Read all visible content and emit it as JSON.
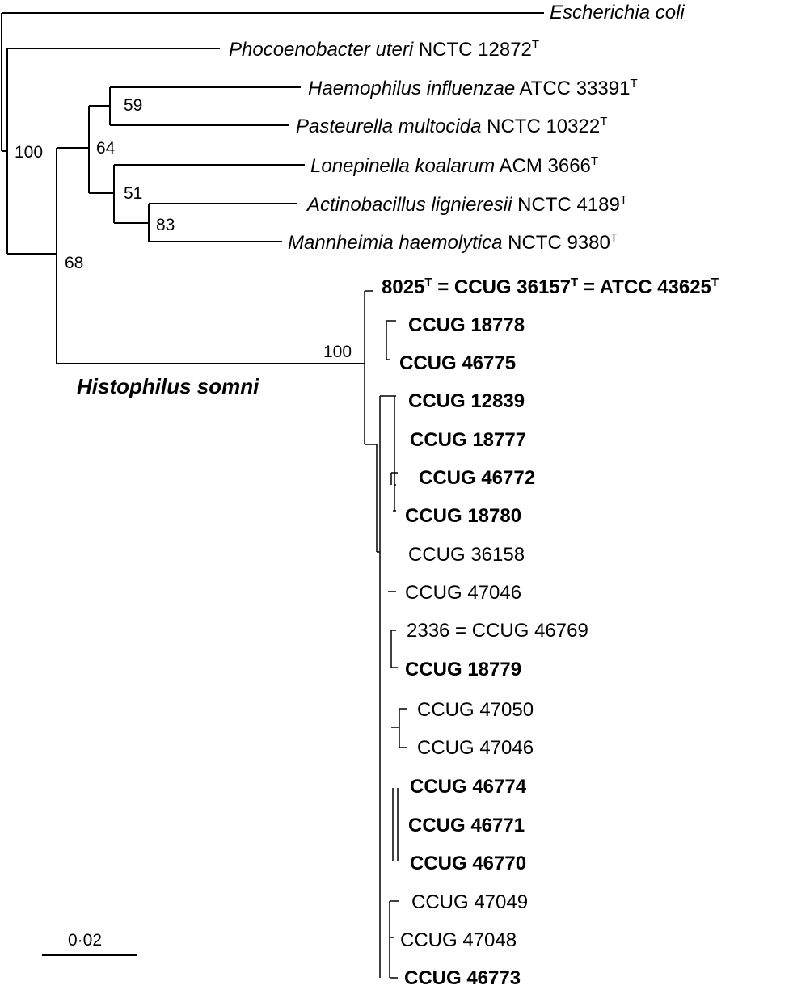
{
  "taxa": [
    {
      "italic": "Escherichia coli",
      "rest": "",
      "sup": ""
    },
    {
      "italic": "Phocoenobacter uteri",
      "rest": " NCTC 12872",
      "sup": "T"
    },
    {
      "italic": "Haemophilus influenzae",
      "rest": " ATCC 33391",
      "sup": "T"
    },
    {
      "italic": "Pasteurella multocida",
      "rest": " NCTC 10322",
      "sup": "T"
    },
    {
      "italic": "Lonepinella koalarum",
      "rest": " ACM 3666",
      "sup": "T"
    },
    {
      "italic": "Actinobacillus lignieresii",
      "rest": " NCTC 4189",
      "sup": "T"
    },
    {
      "italic": "Mannheimia haemolytica",
      "rest": " NCTC 9380",
      "sup": "T"
    }
  ],
  "type_strain": {
    "p1": "8025",
    "s1": "T",
    "p2": " = CCUG 36157",
    "s2": "T",
    "p3": " = ATCC 43625",
    "s3": "T"
  },
  "strains": [
    {
      "label": "CCUG 18778",
      "bold": true
    },
    {
      "label": "CCUG 46775",
      "bold": true
    },
    {
      "label": "CCUG 12839",
      "bold": true
    },
    {
      "label": "CCUG 18777",
      "bold": true
    },
    {
      "label": "CCUG 46772",
      "bold": true
    },
    {
      "label": "CCUG 18780",
      "bold": true
    },
    {
      "label": "CCUG 36158",
      "bold": false
    },
    {
      "label": "CCUG 47046",
      "bold": false
    },
    {
      "label": "2336 = CCUG 46769",
      "bold": false
    },
    {
      "label": "CCUG 18779",
      "bold": true
    },
    {
      "label": "CCUG 47050",
      "bold": false
    },
    {
      "label": "CCUG 47046",
      "bold": false
    },
    {
      "label": "CCUG 46774",
      "bold": true
    },
    {
      "label": "CCUG 46771",
      "bold": true
    },
    {
      "label": "CCUG 46770",
      "bold": true
    },
    {
      "label": "CCUG 47049",
      "bold": false
    },
    {
      "label": "CCUG 47048",
      "bold": false
    },
    {
      "label": "CCUG 46773",
      "bold": true
    }
  ],
  "bootstrap": {
    "root": "100",
    "pasteurellaceae": "64",
    "haemophilus_pasteurella": "59",
    "lonepinella": "51",
    "actino_mannheimia": "83",
    "histophilus_group": "68",
    "histophilus_clade": "100"
  },
  "clade_label": "Histophilus somni",
  "scale_bar": {
    "label": "0·02"
  }
}
